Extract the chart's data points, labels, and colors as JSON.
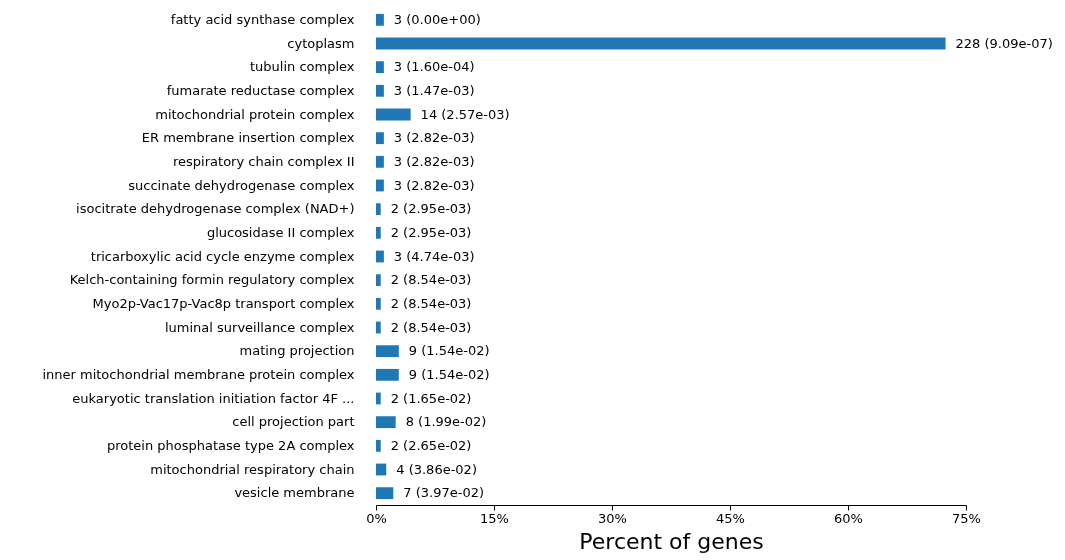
{
  "chart_data": {
    "type": "bar",
    "orientation": "horizontal",
    "xlabel": "Percent of genes",
    "categories": [
      "fatty acid synthase complex",
      "cytoplasm",
      "tubulin complex",
      "fumarate reductase complex",
      "mitochondrial protein complex",
      "ER membrane insertion complex",
      "respiratory chain complex II",
      "succinate dehydrogenase complex",
      "isocitrate dehydrogenase complex (NAD+)",
      "glucosidase II complex",
      "tricarboxylic acid cycle enzyme complex",
      "Kelch-containing formin regulatory complex",
      "Myo2p-Vac17p-Vac8p transport complex",
      "luminal surveillance complex",
      "mating projection",
      "inner mitochondrial membrane protein complex",
      "eukaryotic translation initiation factor 4F ...",
      "cell projection part",
      "protein phosphatase type 2A complex",
      "mitochondrial respiratory chain",
      "vesicle membrane"
    ],
    "values": [
      1.0,
      72.4,
      1.0,
      1.0,
      4.4,
      1.0,
      1.0,
      1.0,
      0.6,
      0.6,
      1.0,
      0.6,
      0.6,
      0.6,
      2.9,
      2.9,
      0.6,
      2.5,
      0.6,
      1.3,
      2.2
    ],
    "annotations": [
      {
        "text": "3 (0.00e+00)",
        "x": 1.0,
        "y": "fatty acid synthase complex"
      },
      {
        "text": "228 (9.09e-07)",
        "x": 72.4,
        "y": "cytoplasm"
      },
      {
        "text": "3 (1.60e-04)",
        "x": 1.0,
        "y": "tubulin complex"
      },
      {
        "text": "3 (1.47e-03)",
        "x": 1.0,
        "y": "fumarate reductase complex"
      },
      {
        "text": "14 (2.57e-03)",
        "x": 4.4,
        "y": "mitochondrial protein complex"
      },
      {
        "text": "3 (2.82e-03)",
        "x": 1.0,
        "y": "ER membrane insertion complex"
      },
      {
        "text": "3 (2.82e-03)",
        "x": 1.0,
        "y": "respiratory chain complex II"
      },
      {
        "text": "3 (2.82e-03)",
        "x": 1.0,
        "y": "succinate dehydrogenase complex"
      },
      {
        "text": "2 (2.95e-03)",
        "x": 0.6,
        "y": "isocitrate dehydrogenase complex (NAD+)"
      },
      {
        "text": "2 (2.95e-03)",
        "x": 0.6,
        "y": "glucosidase II complex"
      },
      {
        "text": "3 (4.74e-03)",
        "x": 1.0,
        "y": "tricarboxylic acid cycle enzyme complex"
      },
      {
        "text": "2 (8.54e-03)",
        "x": 0.6,
        "y": "Kelch-containing formin regulatory complex"
      },
      {
        "text": "2 (8.54e-03)",
        "x": 0.6,
        "y": "Myo2p-Vac17p-Vac8p transport complex"
      },
      {
        "text": "2 (8.54e-03)",
        "x": 0.6,
        "y": "luminal surveillance complex"
      },
      {
        "text": "9 (1.54e-02)",
        "x": 2.9,
        "y": "mating projection"
      },
      {
        "text": "9 (1.54e-02)",
        "x": 2.9,
        "y": "inner mitochondrial membrane protein complex"
      },
      {
        "text": "2 (1.65e-02)",
        "x": 0.6,
        "y": "eukaryotic translation initiation factor 4F ..."
      },
      {
        "text": "8 (1.99e-02)",
        "x": 2.5,
        "y": "cell projection part"
      },
      {
        "text": "2 (2.65e-02)",
        "x": 0.6,
        "y": "protein phosphatase type 2A complex"
      },
      {
        "text": "4 (3.86e-02)",
        "x": 1.3,
        "y": "mitochondrial respiratory chain"
      },
      {
        "text": "7 (3.97e-02)",
        "x": 2.2,
        "y": "vesicle membrane"
      }
    ],
    "color": "#1f77b4",
    "xlim": [
      0,
      75
    ],
    "xticks": [
      {
        "value": 0,
        "label": "0%"
      },
      {
        "value": 15,
        "label": "15%"
      },
      {
        "value": 30,
        "label": "30%"
      },
      {
        "value": 45,
        "label": "45%"
      },
      {
        "value": 60,
        "label": "60%"
      },
      {
        "value": 75,
        "label": "75%"
      }
    ]
  }
}
